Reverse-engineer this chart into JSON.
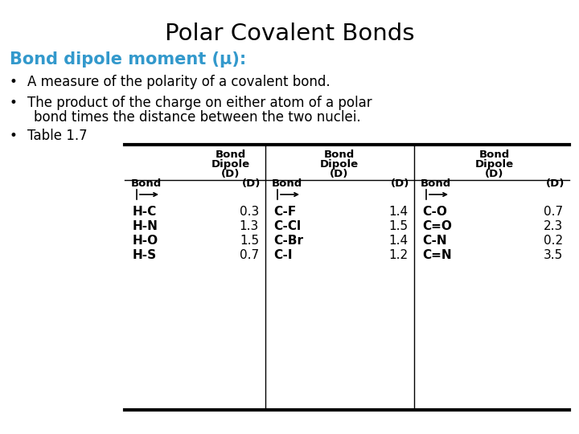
{
  "title": "Polar Covalent Bonds",
  "title_color": "#000000",
  "subtitle": "Bond dipole moment (μ):",
  "subtitle_color": "#3399CC",
  "bullet1": "A measure of the polarity of a covalent bond.",
  "bullet2a": "The product of the charge on either atom of a polar",
  "bullet2b": "bond times the distance between the two nuclei.",
  "bullet3": "Table 1.7",
  "bg_color": "#ffffff",
  "table": {
    "col1_bonds": [
      "H-C",
      "H-N",
      "H-O",
      "H-S"
    ],
    "col1_values": [
      "0.3",
      "1.3",
      "1.5",
      "0.7"
    ],
    "col2_bonds": [
      "C-F",
      "C-Cl",
      "C-Br",
      "C-I"
    ],
    "col2_values": [
      "1.4",
      "1.5",
      "1.4",
      "1.2"
    ],
    "col3_bonds": [
      "C-O",
      "C=O",
      "C-N",
      "C=N"
    ],
    "col3_values": [
      "0.7",
      "2.3",
      "0.2",
      "3.5"
    ]
  }
}
